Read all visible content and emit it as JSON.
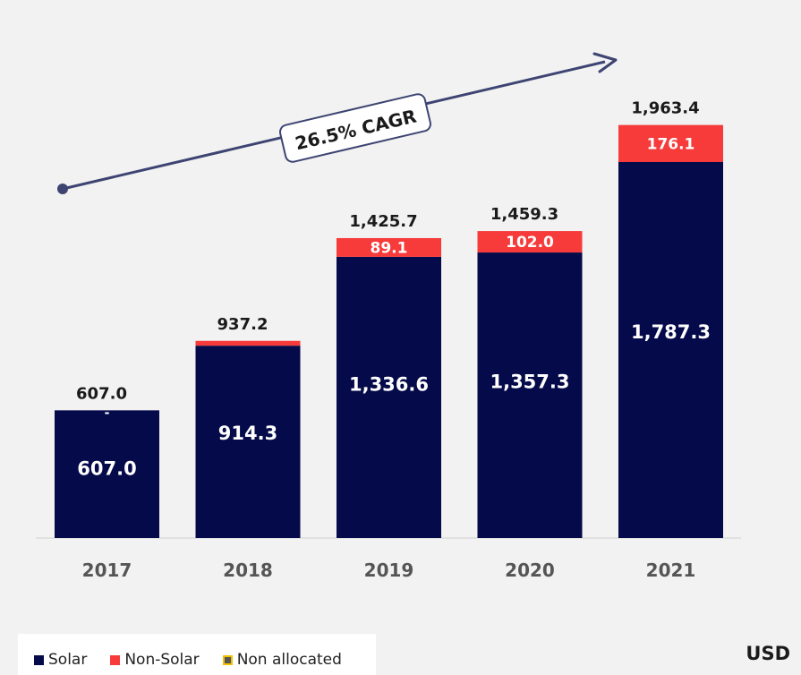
{
  "chart_data": {
    "type": "bar",
    "stacked": true,
    "categories": [
      "2017",
      "2018",
      "2019",
      "2020",
      "2021"
    ],
    "series": [
      {
        "name": "Solar",
        "values": [
          607.0,
          914.3,
          1336.6,
          1357.3,
          1787.3
        ],
        "labels": [
          "607.0",
          "914.3",
          "1,336.6",
          "1,357.3",
          "1,787.3"
        ]
      },
      {
        "name": "Non-Solar",
        "values": [
          0,
          22.9,
          89.1,
          102.0,
          176.1
        ],
        "labels": [
          "-",
          "",
          "89.1",
          "102.0",
          "176.1"
        ]
      },
      {
        "name": "Non allocated",
        "values": [
          0,
          0,
          0,
          0,
          0
        ]
      }
    ],
    "totals": [
      "607.0",
      "937.2",
      "1,425.7",
      "1,459.3",
      "1,963.4"
    ],
    "total_values": [
      607.0,
      937.2,
      1425.7,
      1459.3,
      1963.4
    ],
    "annotation": "26.5% CAGR",
    "unit": "USD",
    "ylim": [
      0,
      1963.4
    ],
    "grid": false,
    "legend_position": "bottom-left"
  },
  "colors": {
    "solar": "#050a4a",
    "non_solar": "#f73b3b",
    "non_allocated_border": "#f2c200",
    "non_allocated_fill": "#555555",
    "arrow": "#3d4472",
    "text": "#1a1a1a",
    "axis_text": "#555555"
  }
}
